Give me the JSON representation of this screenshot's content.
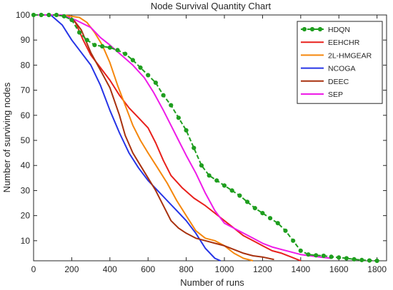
{
  "chart_data": {
    "type": "line",
    "title": "Node Survival Quantity Chart",
    "xlabel": "Number of runs",
    "ylabel": "Number of surviving nodes",
    "xlim": [
      0,
      1850
    ],
    "ylim": [
      2,
      100
    ],
    "xticks": [
      0,
      200,
      400,
      600,
      800,
      1000,
      1200,
      1400,
      1600,
      1800
    ],
    "yticks": [
      10,
      20,
      30,
      40,
      50,
      60,
      70,
      80,
      90,
      100
    ],
    "grid": false,
    "legend_position": "top-right",
    "series": [
      {
        "name": "HDQN",
        "color": "#1f9e1f",
        "marker": "circle",
        "dashed": true,
        "points": [
          [
            0,
            100
          ],
          [
            40,
            100
          ],
          [
            80,
            100
          ],
          [
            120,
            100
          ],
          [
            160,
            99.5
          ],
          [
            200,
            98
          ],
          [
            240,
            93
          ],
          [
            280,
            90
          ],
          [
            320,
            88
          ],
          [
            360,
            87.5
          ],
          [
            400,
            87
          ],
          [
            440,
            86
          ],
          [
            480,
            84.5
          ],
          [
            520,
            82
          ],
          [
            560,
            79
          ],
          [
            600,
            76
          ],
          [
            640,
            73
          ],
          [
            680,
            68
          ],
          [
            720,
            64
          ],
          [
            760,
            59
          ],
          [
            800,
            54
          ],
          [
            840,
            47
          ],
          [
            880,
            40
          ],
          [
            920,
            36
          ],
          [
            960,
            34
          ],
          [
            1000,
            32
          ],
          [
            1040,
            30
          ],
          [
            1080,
            28
          ],
          [
            1120,
            25.5
          ],
          [
            1160,
            23
          ],
          [
            1200,
            21
          ],
          [
            1240,
            19
          ],
          [
            1280,
            17
          ],
          [
            1320,
            14
          ],
          [
            1360,
            10
          ],
          [
            1400,
            6
          ],
          [
            1440,
            4.5
          ],
          [
            1480,
            4.2
          ],
          [
            1520,
            4
          ],
          [
            1560,
            3.6
          ],
          [
            1600,
            3.3
          ],
          [
            1640,
            3
          ],
          [
            1680,
            2.6
          ],
          [
            1720,
            2.3
          ],
          [
            1760,
            2.1
          ],
          [
            1800,
            2
          ]
        ]
      },
      {
        "name": "EEHCHR",
        "color": "#e8201c",
        "marker": "none",
        "dashed": false,
        "points": [
          [
            0,
            100
          ],
          [
            100,
            100
          ],
          [
            180,
            99.5
          ],
          [
            220,
            97
          ],
          [
            260,
            90
          ],
          [
            300,
            84
          ],
          [
            350,
            79
          ],
          [
            400,
            74
          ],
          [
            450,
            68
          ],
          [
            500,
            63
          ],
          [
            550,
            59
          ],
          [
            600,
            55
          ],
          [
            640,
            49
          ],
          [
            680,
            42
          ],
          [
            720,
            36
          ],
          [
            780,
            31
          ],
          [
            840,
            27
          ],
          [
            900,
            24
          ],
          [
            950,
            21
          ],
          [
            1000,
            18
          ],
          [
            1050,
            15
          ],
          [
            1100,
            12
          ],
          [
            1150,
            10
          ],
          [
            1200,
            8
          ],
          [
            1250,
            6
          ],
          [
            1300,
            5
          ],
          [
            1350,
            3.5
          ],
          [
            1400,
            2
          ]
        ]
      },
      {
        "name": "2L-HMGEAR",
        "color": "#f5870c",
        "marker": "none",
        "dashed": false,
        "points": [
          [
            0,
            100
          ],
          [
            150,
            100
          ],
          [
            240,
            99
          ],
          [
            280,
            97
          ],
          [
            320,
            93
          ],
          [
            360,
            88
          ],
          [
            400,
            81
          ],
          [
            440,
            72
          ],
          [
            480,
            64
          ],
          [
            520,
            56
          ],
          [
            560,
            50
          ],
          [
            600,
            45
          ],
          [
            650,
            39
          ],
          [
            700,
            33
          ],
          [
            750,
            26
          ],
          [
            800,
            20
          ],
          [
            850,
            14
          ],
          [
            900,
            11
          ],
          [
            950,
            10
          ],
          [
            1000,
            8
          ],
          [
            1050,
            5
          ],
          [
            1100,
            3
          ],
          [
            1150,
            2
          ]
        ]
      },
      {
        "name": "NCOGA",
        "color": "#2634e6",
        "marker": "none",
        "dashed": false,
        "points": [
          [
            0,
            100
          ],
          [
            90,
            100
          ],
          [
            150,
            96
          ],
          [
            200,
            90
          ],
          [
            250,
            85
          ],
          [
            300,
            80
          ],
          [
            350,
            72
          ],
          [
            400,
            62
          ],
          [
            450,
            53
          ],
          [
            500,
            45
          ],
          [
            550,
            39
          ],
          [
            600,
            34
          ],
          [
            650,
            30
          ],
          [
            700,
            26
          ],
          [
            750,
            22
          ],
          [
            800,
            18
          ],
          [
            850,
            13
          ],
          [
            900,
            7
          ],
          [
            950,
            3
          ],
          [
            980,
            2
          ]
        ]
      },
      {
        "name": "DEEC",
        "color": "#a8310e",
        "marker": "none",
        "dashed": false,
        "points": [
          [
            0,
            100
          ],
          [
            150,
            100
          ],
          [
            210,
            98
          ],
          [
            250,
            94
          ],
          [
            300,
            85
          ],
          [
            350,
            78
          ],
          [
            400,
            71
          ],
          [
            450,
            60
          ],
          [
            480,
            52
          ],
          [
            520,
            45
          ],
          [
            560,
            40
          ],
          [
            600,
            35
          ],
          [
            640,
            30
          ],
          [
            680,
            24
          ],
          [
            720,
            18
          ],
          [
            760,
            15
          ],
          [
            800,
            13
          ],
          [
            850,
            11
          ],
          [
            900,
            10
          ],
          [
            950,
            9
          ],
          [
            1000,
            8
          ],
          [
            1050,
            6.5
          ],
          [
            1100,
            5
          ],
          [
            1150,
            4
          ],
          [
            1200,
            3.5
          ],
          [
            1260,
            2.5
          ]
        ]
      },
      {
        "name": "SEP",
        "color": "#ee1be8",
        "marker": "none",
        "dashed": false,
        "points": [
          [
            0,
            100
          ],
          [
            150,
            100
          ],
          [
            220,
            98
          ],
          [
            300,
            95
          ],
          [
            350,
            91
          ],
          [
            400,
            88
          ],
          [
            460,
            84
          ],
          [
            520,
            80
          ],
          [
            580,
            75
          ],
          [
            630,
            69
          ],
          [
            680,
            62
          ],
          [
            720,
            56
          ],
          [
            760,
            50
          ],
          [
            800,
            44
          ],
          [
            850,
            37
          ],
          [
            900,
            29
          ],
          [
            950,
            22
          ],
          [
            1000,
            17
          ],
          [
            1050,
            15
          ],
          [
            1100,
            13
          ],
          [
            1150,
            11
          ],
          [
            1200,
            9
          ],
          [
            1250,
            7.5
          ],
          [
            1300,
            6.5
          ],
          [
            1350,
            5.5
          ],
          [
            1400,
            4.5
          ],
          [
            1450,
            4
          ],
          [
            1500,
            3.5
          ],
          [
            1560,
            3
          ]
        ]
      }
    ]
  }
}
